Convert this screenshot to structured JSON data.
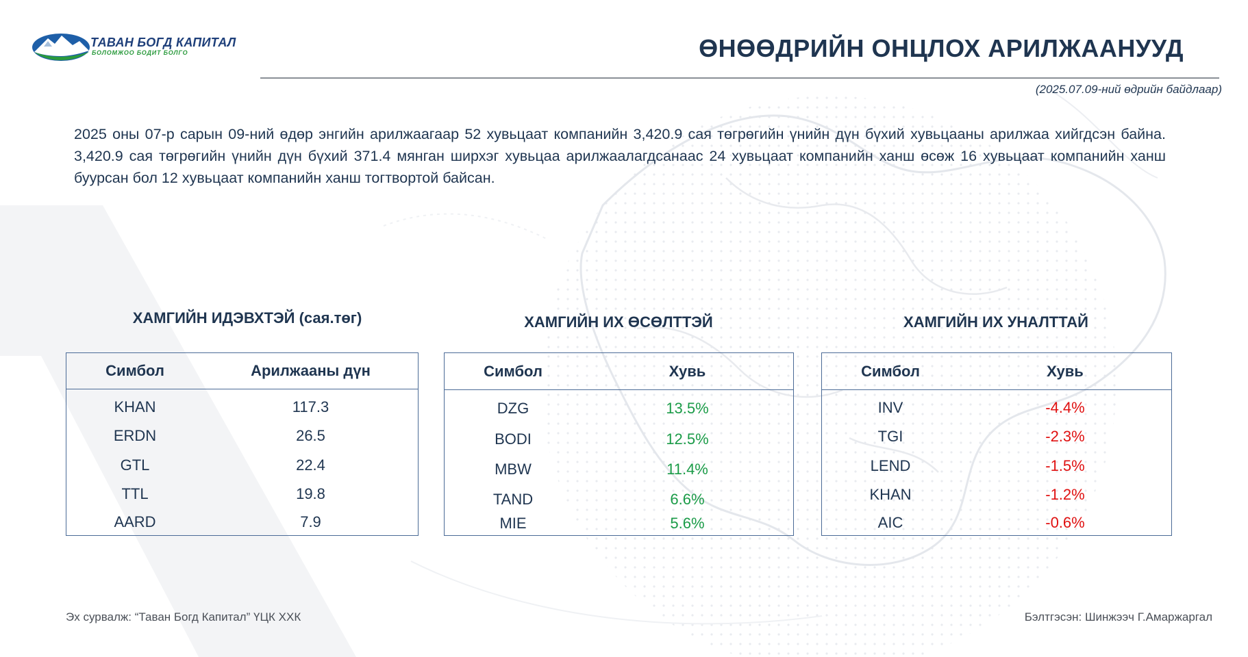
{
  "brand": {
    "name": "ТАВАН БОГД КАПИТАЛ",
    "tagline": "БОЛОМЖОО БОДИТ БОЛГО",
    "colors": {
      "navy": "#1e3f7a",
      "green": "#2a9a3c"
    }
  },
  "header": {
    "title": "ӨНӨӨДРИЙН ОНЦЛОХ АРИЛЖААНУУД",
    "date_note": "(2025.07.09-ний өдрийн байдлаар)"
  },
  "summary": "2025 оны 07-р сарын 09-ний өдөр энгийн арилжаагаар 52 хувьцаат компанийн 3,420.9 сая төгрөгийн үнийн дүн бүхий хувьцааны арилжаа хийгдсэн байна. 3,420.9 сая төгрөгийн үнийн дүн бүхий 371.4 мянган ширхэг хувьцаа арилжаалагдсанаас 24 хувьцаат компанийн ханш өсөж 16 хувьцаат компанийн ханш буурсан бол 12 хувьцаат компанийн ханш тогтвортой байсан.",
  "colors": {
    "positive": "#1a9b47",
    "negative": "#e01010",
    "text": "#1f3550",
    "border": "#4a6a96"
  },
  "tables": {
    "active": {
      "title": "ХАМГИЙН ИДЭВХТЭЙ (сая.төг)",
      "headers": [
        "Симбол",
        "Арилжааны дүн"
      ],
      "rows": [
        [
          "KHAN",
          "117.3"
        ],
        [
          "ERDN",
          "26.5"
        ],
        [
          "GTL",
          "22.4"
        ],
        [
          "TTL",
          "19.8"
        ],
        [
          "AARD",
          "7.9"
        ]
      ]
    },
    "gainers": {
      "title": "ХАМГИЙН ИХ ӨСӨЛТТЭЙ",
      "headers": [
        "Симбол",
        "Хувь"
      ],
      "rows": [
        [
          "DZG",
          "13.5%"
        ],
        [
          "BODI",
          "12.5%"
        ],
        [
          "MBW",
          "11.4%"
        ],
        [
          "TAND",
          "6.6%"
        ],
        [
          "MIE",
          "5.6%"
        ]
      ]
    },
    "losers": {
      "title": "ХАМГИЙН ИХ УНАЛТТАЙ",
      "headers": [
        "Симбол",
        "Хувь"
      ],
      "rows": [
        [
          "INV",
          "-4.4%"
        ],
        [
          "TGI",
          "-2.3%"
        ],
        [
          "LEND",
          "-1.5%"
        ],
        [
          "KHAN",
          "-1.2%"
        ],
        [
          "AIC",
          "-0.6%"
        ]
      ]
    }
  },
  "footer": {
    "source": "Эх сурвалж: “Таван Богд Капитал” ҮЦК ХХК",
    "author": "Бэлтгэсэн: Шинжээч Г.Амаржаргал"
  }
}
